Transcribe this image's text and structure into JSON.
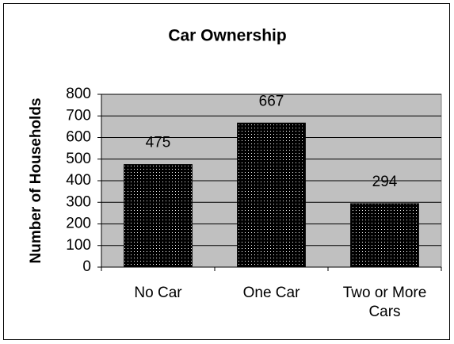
{
  "chart_data": {
    "type": "bar",
    "title": "Car Ownership",
    "y_label": "Number of Households",
    "categories": [
      "No Car",
      "One Car",
      "Two or More Cars"
    ],
    "values": [
      475,
      667,
      294
    ],
    "color": "#000000",
    "ylim": [
      0,
      800
    ],
    "yticks": [
      0,
      100,
      200,
      300,
      400,
      500,
      600,
      700,
      800
    ],
    "grid": true
  }
}
